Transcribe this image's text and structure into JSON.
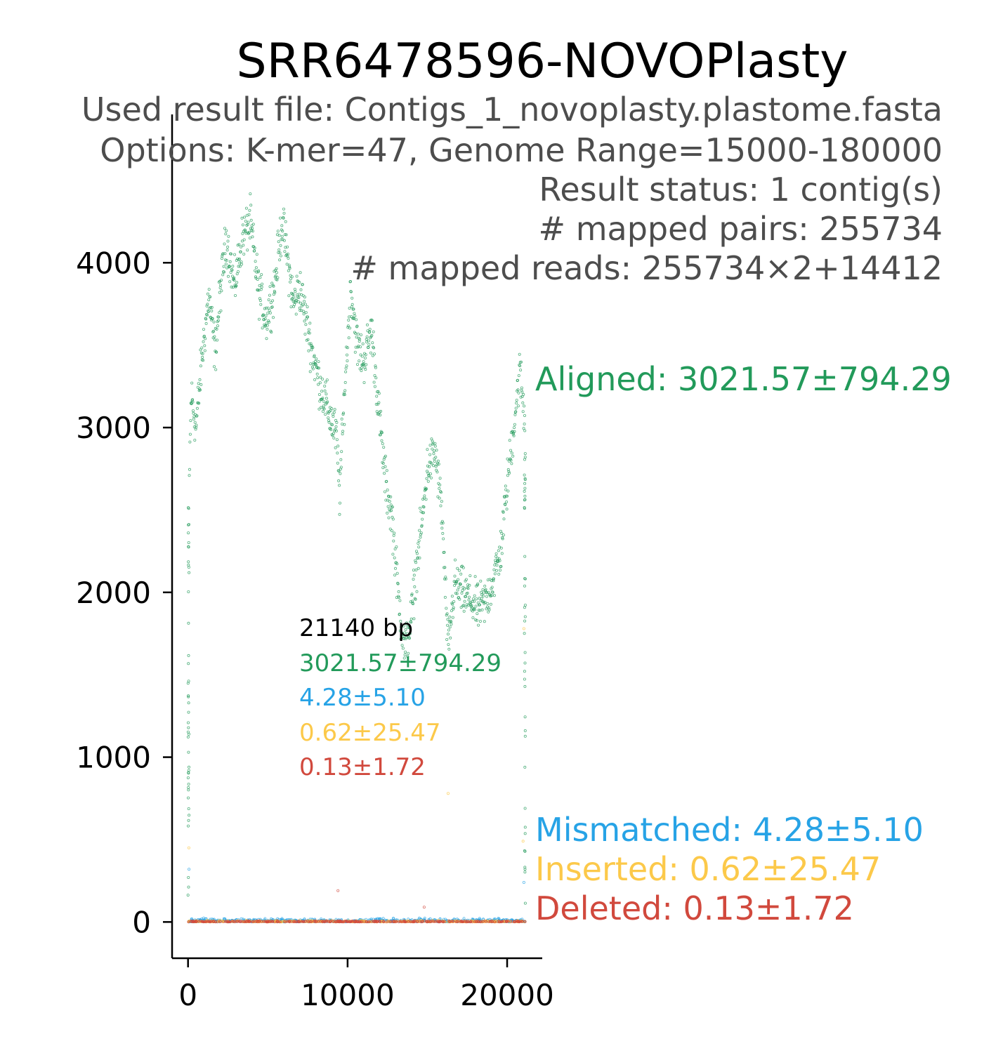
{
  "chart_data": {
    "type": "scatter",
    "title": "SRR6478596-NOVOPlasty",
    "info_lines": [
      "Used result file: Contigs_1_novoplasty.plastome.fasta",
      "Options: K-mer=47, Genome Range=15000-180000",
      "Result status: 1 contig(s)",
      "# mapped pairs: 255734",
      "# mapped reads: 255734×2+14412"
    ],
    "xlabel": "",
    "ylabel": "",
    "xlim": [
      -1000,
      22200
    ],
    "ylim": [
      -220,
      4900
    ],
    "xticks": [
      0,
      10000,
      20000
    ],
    "yticks": [
      0,
      1000,
      2000,
      3000,
      4000
    ],
    "genome_length_label": "21140 bp",
    "genome_length": 21140,
    "colors": {
      "aligned": "#229a5a",
      "mismatched": "#27a3e6",
      "inserted": "#fcc94a",
      "deleted": "#d1493d"
    },
    "series": [
      {
        "name": "Aligned",
        "key": "aligned",
        "label": "Aligned: 3021.57±794.29",
        "short_label": "3021.57±794.29",
        "mean": 3021.57,
        "sd": 794.29,
        "profile": [
          [
            0,
            150
          ],
          [
            80,
            2700
          ],
          [
            200,
            3200
          ],
          [
            500,
            3000
          ],
          [
            900,
            3450
          ],
          [
            1300,
            3800
          ],
          [
            1700,
            3450
          ],
          [
            2000,
            3800
          ],
          [
            2400,
            4150
          ],
          [
            2900,
            3850
          ],
          [
            3400,
            4150
          ],
          [
            3900,
            4250
          ],
          [
            4400,
            3850
          ],
          [
            4900,
            3650
          ],
          [
            5400,
            3850
          ],
          [
            5900,
            4250
          ],
          [
            6200,
            4050
          ],
          [
            6600,
            3750
          ],
          [
            7000,
            3850
          ],
          [
            7400,
            3650
          ],
          [
            7800,
            3450
          ],
          [
            8300,
            3250
          ],
          [
            8800,
            3100
          ],
          [
            9300,
            2950
          ],
          [
            9500,
            2600
          ],
          [
            9800,
            3200
          ],
          [
            10200,
            3850
          ],
          [
            10600,
            3500
          ],
          [
            11000,
            3400
          ],
          [
            11500,
            3600
          ],
          [
            12000,
            3050
          ],
          [
            12400,
            2650
          ],
          [
            12800,
            2450
          ],
          [
            13200,
            1950
          ],
          [
            13600,
            1650
          ],
          [
            14000,
            1850
          ],
          [
            14300,
            2150
          ],
          [
            14700,
            2450
          ],
          [
            15000,
            2750
          ],
          [
            15500,
            2850
          ],
          [
            15900,
            2500
          ],
          [
            16300,
            1650
          ],
          [
            16700,
            2050
          ],
          [
            17200,
            2000
          ],
          [
            17700,
            1950
          ],
          [
            18200,
            1900
          ],
          [
            18700,
            1950
          ],
          [
            19200,
            2100
          ],
          [
            19600,
            2250
          ],
          [
            20000,
            2650
          ],
          [
            20400,
            3000
          ],
          [
            20800,
            3350
          ],
          [
            21100,
            3050
          ],
          [
            21140,
            120
          ]
        ]
      },
      {
        "name": "Mismatched",
        "key": "mismatched",
        "label": "Mismatched: 4.28±5.10",
        "short_label": "4.28±5.10",
        "mean": 4.28,
        "sd": 5.1
      },
      {
        "name": "Inserted",
        "key": "inserted",
        "label": "Inserted: 0.62±25.47",
        "short_label": "0.62±25.47",
        "mean": 0.62,
        "sd": 25.47
      },
      {
        "name": "Deleted",
        "key": "deleted",
        "label": "Deleted: 0.13±1.72",
        "short_label": "0.13±1.72",
        "mean": 0.13,
        "sd": 1.72
      }
    ]
  }
}
